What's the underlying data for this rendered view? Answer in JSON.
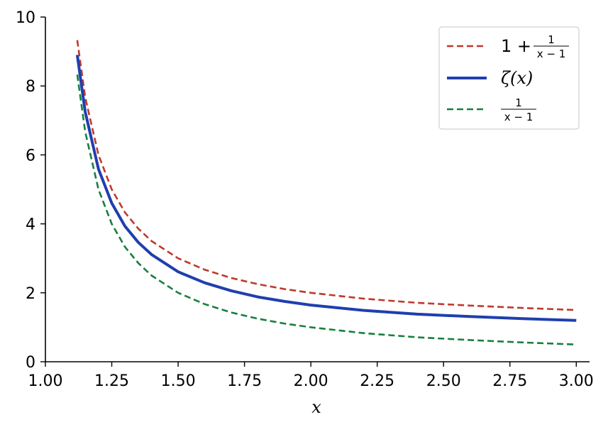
{
  "chart_data": {
    "type": "line",
    "xlabel": "x",
    "ylabel": "",
    "xlim": [
      1.0,
      3.05
    ],
    "ylim": [
      0,
      10
    ],
    "grid": false,
    "legend_position": "top-right",
    "x_ticks": [
      1.0,
      1.25,
      1.5,
      1.75,
      2.0,
      2.25,
      2.5,
      2.75,
      3.0
    ],
    "x_tick_labels": [
      "1.00",
      "1.25",
      "1.50",
      "1.75",
      "2.00",
      "2.25",
      "2.50",
      "2.75",
      "3.00"
    ],
    "y_ticks": [
      0,
      2,
      4,
      6,
      8,
      10
    ],
    "y_tick_labels": [
      "0",
      "2",
      "4",
      "6",
      "8",
      "10"
    ],
    "series": [
      {
        "name": "1 + 1/(x − 1)",
        "legend_lead": "1 + ",
        "legend_num": "1",
        "legend_den": "x − 1",
        "color": "#c0392b",
        "style": "dashed",
        "x": [
          1.12,
          1.15,
          1.2,
          1.25,
          1.3,
          1.35,
          1.4,
          1.5,
          1.6,
          1.7,
          1.8,
          1.9,
          2.0,
          2.2,
          2.4,
          2.6,
          2.8,
          3.0
        ],
        "y": [
          9.33,
          7.67,
          6.0,
          5.0,
          4.33,
          3.86,
          3.5,
          3.0,
          2.67,
          2.43,
          2.25,
          2.11,
          2.0,
          1.83,
          1.71,
          1.63,
          1.56,
          1.5
        ]
      },
      {
        "name": "ζ(x)",
        "legend_text": "ζ(x)",
        "color": "#1f3fae",
        "style": "solid",
        "x": [
          1.12,
          1.15,
          1.2,
          1.25,
          1.3,
          1.35,
          1.4,
          1.5,
          1.6,
          1.7,
          1.8,
          1.9,
          2.0,
          2.2,
          2.4,
          2.6,
          2.8,
          3.0
        ],
        "y": [
          8.9,
          7.25,
          5.59,
          4.6,
          3.93,
          3.46,
          3.11,
          2.61,
          2.29,
          2.06,
          1.88,
          1.75,
          1.645,
          1.49,
          1.38,
          1.31,
          1.25,
          1.2
        ]
      },
      {
        "name": "1/(x − 1)",
        "legend_num": "1",
        "legend_den": "x − 1",
        "color": "#17803d",
        "style": "dashed",
        "x": [
          1.12,
          1.15,
          1.2,
          1.25,
          1.3,
          1.35,
          1.4,
          1.5,
          1.6,
          1.7,
          1.8,
          1.9,
          2.0,
          2.2,
          2.4,
          2.6,
          2.8,
          3.0
        ],
        "y": [
          8.33,
          6.67,
          5.0,
          4.0,
          3.33,
          2.86,
          2.5,
          2.0,
          1.67,
          1.43,
          1.25,
          1.11,
          1.0,
          0.83,
          0.71,
          0.63,
          0.56,
          0.5
        ]
      }
    ]
  }
}
